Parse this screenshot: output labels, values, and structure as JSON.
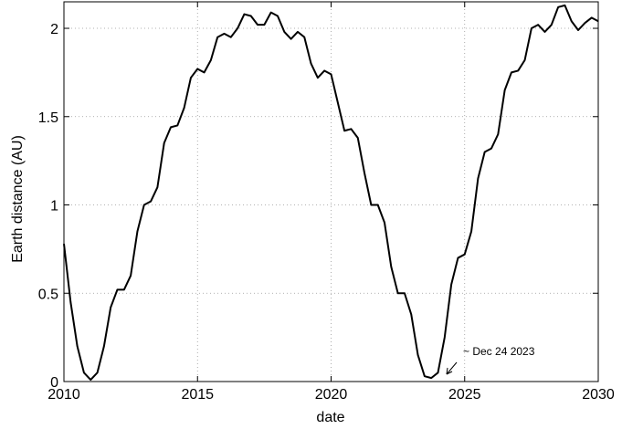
{
  "chart_data": {
    "type": "line",
    "xlabel": "date",
    "ylabel": "Earth distance (AU)",
    "annotations": [
      {
        "text": "~ Dec 24 2023"
      }
    ],
    "color": "#000000",
    "grid": true,
    "xlim": [
      2010,
      2030
    ],
    "xticks": [
      2010,
      2015,
      2020,
      2025,
      2030
    ],
    "ylim": [
      0,
      2.15
    ],
    "yticks": [
      0,
      0.5,
      1,
      1.5,
      2
    ],
    "x": [
      2010,
      2010.25,
      2010.5,
      2010.75,
      2011,
      2011.25,
      2011.5,
      2011.75,
      2012,
      2012.25,
      2012.5,
      2012.75,
      2013,
      2013.25,
      2013.5,
      2013.75,
      2014,
      2014.25,
      2014.5,
      2014.75,
      2015,
      2015.25,
      2015.5,
      2015.75,
      2016,
      2016.25,
      2016.5,
      2016.75,
      2017,
      2017.25,
      2017.5,
      2017.75,
      2018,
      2018.25,
      2018.5,
      2018.75,
      2019,
      2019.25,
      2019.5,
      2019.75,
      2020,
      2020.25,
      2020.5,
      2020.75,
      2021,
      2021.25,
      2021.5,
      2021.75,
      2022,
      2022.25,
      2022.5,
      2022.75,
      2023,
      2023.25,
      2023.5,
      2023.75,
      2024,
      2024.25,
      2024.5,
      2024.75,
      2025,
      2025.25,
      2025.5,
      2025.75,
      2026,
      2026.25,
      2026.5,
      2026.75,
      2027,
      2027.25,
      2027.5,
      2027.75,
      2028,
      2028.25,
      2028.5,
      2028.75,
      2029,
      2029.25,
      2029.5,
      2029.75,
      2030
    ],
    "values": [
      0.78,
      0.45,
      0.2,
      0.05,
      0.01,
      0.05,
      0.2,
      0.42,
      0.52,
      0.52,
      0.6,
      0.85,
      1.0,
      1.02,
      1.1,
      1.35,
      1.44,
      1.45,
      1.55,
      1.72,
      1.77,
      1.75,
      1.82,
      1.95,
      1.97,
      1.95,
      2.0,
      2.08,
      2.07,
      2.02,
      2.02,
      2.09,
      2.07,
      1.98,
      1.94,
      1.98,
      1.95,
      1.8,
      1.72,
      1.76,
      1.74,
      1.58,
      1.42,
      1.43,
      1.38,
      1.18,
      1.0,
      1.0,
      0.9,
      0.65,
      0.5,
      0.5,
      0.38,
      0.15,
      0.03,
      0.02,
      0.05,
      0.25,
      0.55,
      0.7,
      0.72,
      0.85,
      1.15,
      1.3,
      1.32,
      1.4,
      1.65,
      1.75,
      1.76,
      1.82,
      2.0,
      2.02,
      1.98,
      2.02,
      2.12,
      2.13,
      2.04,
      1.99,
      2.03,
      2.06,
      2.04
    ]
  }
}
